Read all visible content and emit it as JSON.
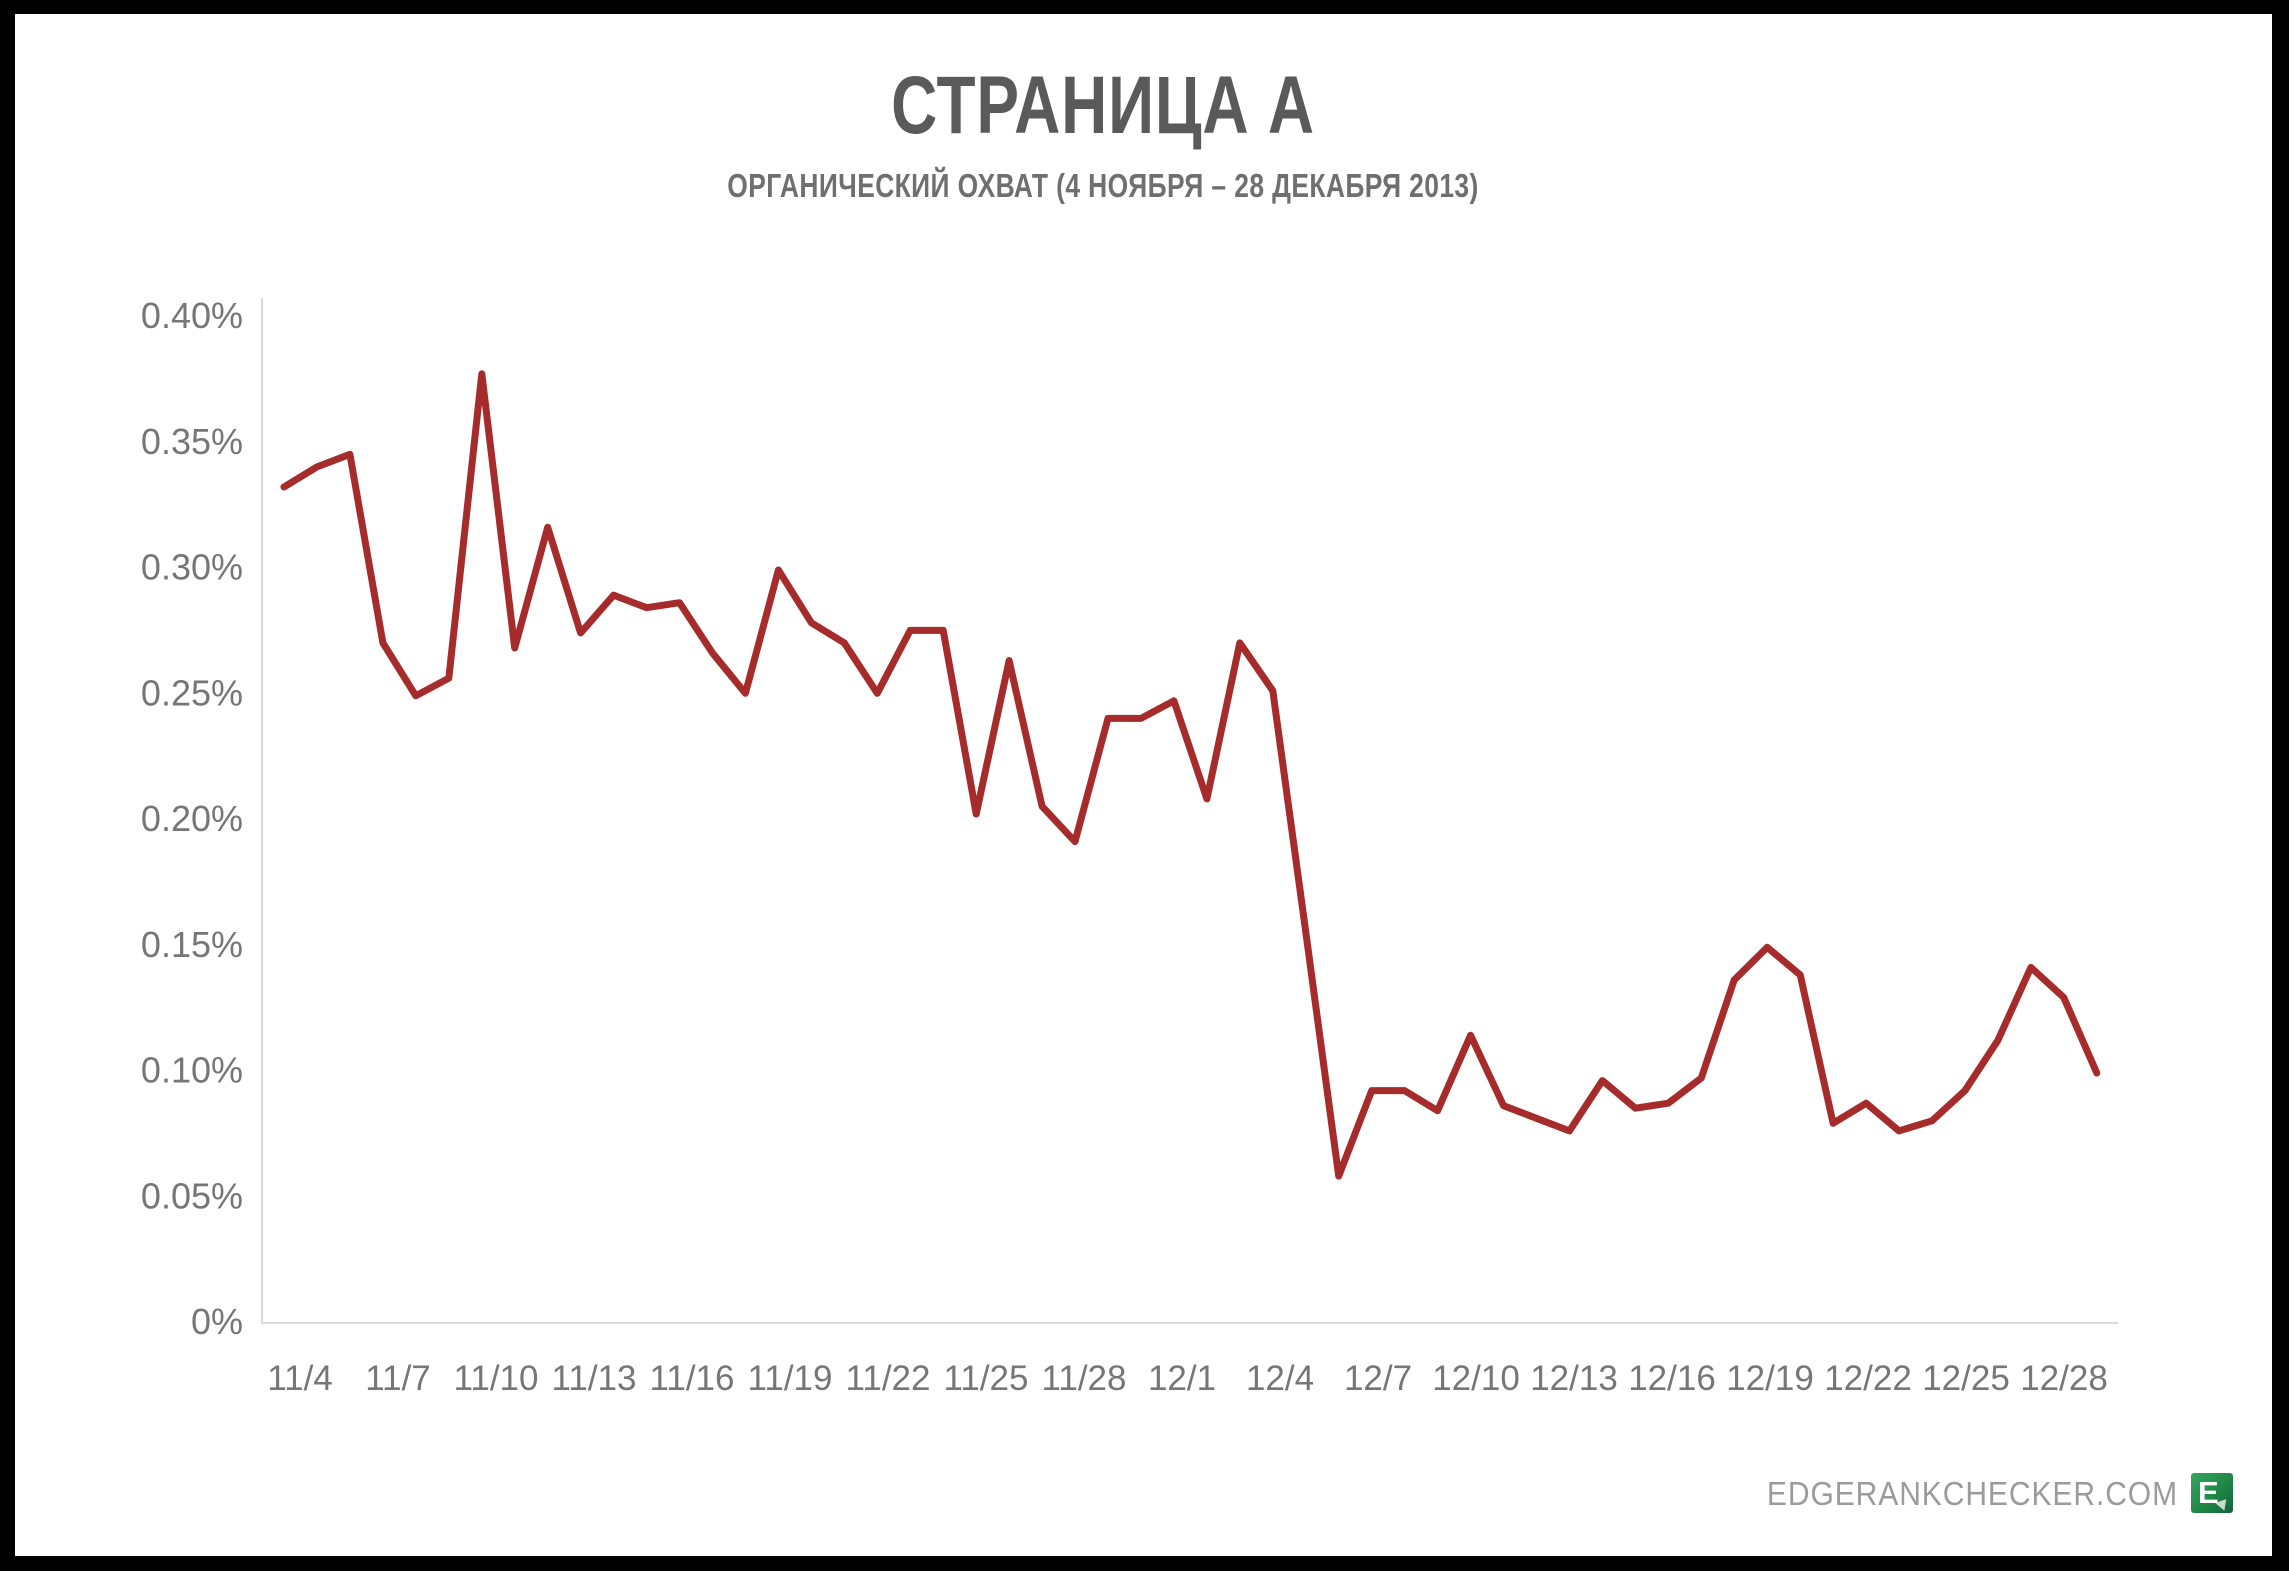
{
  "page": {
    "title": "СТРАНИЦА А",
    "subtitle": "ОРГАНИЧЕСКИЙ ОХВАТ (4 НОЯБРЯ – 28 ДЕКАБРЯ 2013)",
    "footer": {
      "site_label": "EDGERANKCHECKER.COM",
      "logo_letter": "E"
    }
  },
  "colors": {
    "line": "#a62b2b",
    "axis_line": "#d9d9d9",
    "tick_label": "#767676",
    "title": "#5a5a5a",
    "subtitle": "#6f6f6f",
    "footer_text": "#9b9b9b",
    "logo_green": "#1f8748",
    "logo_green_dark": "#14613a",
    "frame": "#000000",
    "background": "#ffffff"
  },
  "chart_data": {
    "type": "line",
    "title": "СТРАНИЦА А",
    "subtitle": "ОРГАНИЧЕСКИЙ ОХВАТ (4 НОЯБРЯ – 28 ДЕКАБРЯ 2013)",
    "unit": "percent_organic_reach",
    "x": [
      "11/4",
      "11/5",
      "11/6",
      "11/7",
      "11/8",
      "11/9",
      "11/10",
      "11/11",
      "11/12",
      "11/13",
      "11/14",
      "11/15",
      "11/16",
      "11/17",
      "11/18",
      "11/19",
      "11/20",
      "11/21",
      "11/22",
      "11/23",
      "11/24",
      "11/25",
      "11/26",
      "11/27",
      "11/28",
      "11/29",
      "11/30",
      "12/1",
      "12/2",
      "12/3",
      "12/4",
      "12/5",
      "12/6",
      "12/7",
      "12/8",
      "12/9",
      "12/10",
      "12/11",
      "12/12",
      "12/13",
      "12/14",
      "12/15",
      "12/16",
      "12/17",
      "12/18",
      "12/19",
      "12/20",
      "12/21",
      "12/22",
      "12/23",
      "12/24",
      "12/25",
      "12/26",
      "12/27",
      "12/28",
      "12/29"
    ],
    "values": [
      0.332,
      0.34,
      0.345,
      0.27,
      0.249,
      0.256,
      0.377,
      0.268,
      0.316,
      0.274,
      0.289,
      0.284,
      0.286,
      0.266,
      0.25,
      0.299,
      0.278,
      0.27,
      0.25,
      0.275,
      0.275,
      0.202,
      0.263,
      0.205,
      0.191,
      0.24,
      0.24,
      0.247,
      0.208,
      0.27,
      0.251,
      0.155,
      0.058,
      0.092,
      0.092,
      0.084,
      0.114,
      0.086,
      0.081,
      0.076,
      0.096,
      0.085,
      0.087,
      0.097,
      0.136,
      0.149,
      0.138,
      0.079,
      0.087,
      0.076,
      0.08,
      0.092,
      0.112,
      0.141,
      0.129,
      0.099
    ],
    "x_tick_labels": [
      "11/4",
      "11/7",
      "11/10",
      "11/13",
      "11/16",
      "11/19",
      "11/22",
      "11/25",
      "11/28",
      "12/1",
      "12/4",
      "12/7",
      "12/10",
      "12/13",
      "12/16",
      "12/19",
      "12/22",
      "12/25",
      "12/28"
    ],
    "y_tick_labels": [
      "0.40%",
      "0.35%",
      "0.30%",
      "0.25%",
      "0.20%",
      "0.15%",
      "0.10%",
      "0.05%",
      "0%"
    ],
    "ylim": [
      0,
      0.4
    ],
    "grid": "off",
    "legend": "none"
  }
}
